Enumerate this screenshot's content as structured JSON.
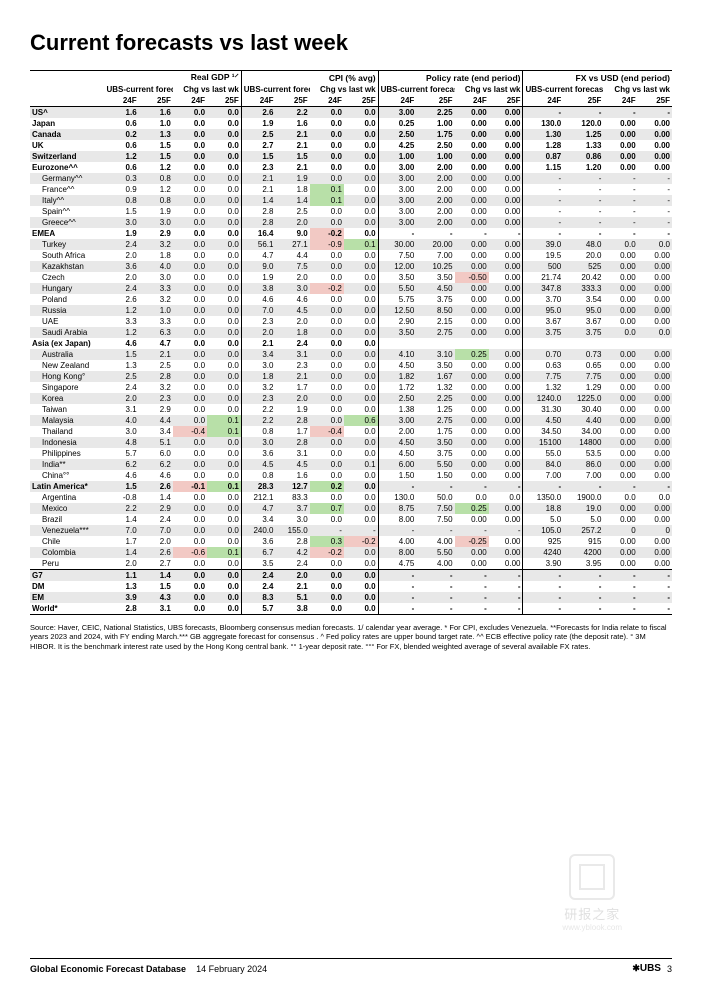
{
  "title": "Current forecasts vs last week",
  "groups": [
    {
      "label": "Real GDP ¹⸍",
      "sub1": "UBS-current forecasts",
      "sub2": "Chg vs last wk"
    },
    {
      "label": "CPI (% avg)",
      "sub1": "UBS-current forecasts",
      "sub2": "Chg vs last wk"
    },
    {
      "label": "Policy rate (end period)",
      "sub1": "UBS-current forecasts",
      "sub2": "Chg vs last wk"
    },
    {
      "label": "FX vs USD (end period)",
      "sub1": "UBS-current forecasts",
      "sub2": "Chg vs last wk"
    }
  ],
  "year_headers": [
    "24F",
    "25F",
    "24F",
    "25F",
    "24F",
    "25F",
    "24F",
    "25F",
    "24F",
    "25F",
    "24F",
    "25F",
    "24F",
    "25F",
    "24F",
    "25F"
  ],
  "rows": [
    {
      "name": "US^",
      "bold": true,
      "shade": true,
      "v": [
        "1.6",
        "1.6",
        "0.0",
        "0.0",
        "2.6",
        "2.2",
        "0.0",
        "0.0",
        "3.00",
        "2.25",
        "0.00",
        "0.00",
        "-",
        "-",
        "-",
        "-"
      ]
    },
    {
      "name": "Japan",
      "bold": true,
      "v": [
        "0.6",
        "1.0",
        "0.0",
        "0.0",
        "1.9",
        "1.6",
        "0.0",
        "0.0",
        "0.25",
        "1.00",
        "0.00",
        "0.00",
        "130.0",
        "120.0",
        "0.00",
        "0.00"
      ]
    },
    {
      "name": "Canada",
      "bold": true,
      "shade": true,
      "v": [
        "0.2",
        "1.3",
        "0.0",
        "0.0",
        "2.5",
        "2.1",
        "0.0",
        "0.0",
        "2.50",
        "1.75",
        "0.00",
        "0.00",
        "1.30",
        "1.25",
        "0.00",
        "0.00"
      ]
    },
    {
      "name": "UK",
      "bold": true,
      "v": [
        "0.6",
        "1.5",
        "0.0",
        "0.0",
        "2.7",
        "2.1",
        "0.0",
        "0.0",
        "4.25",
        "2.50",
        "0.00",
        "0.00",
        "1.28",
        "1.33",
        "0.00",
        "0.00"
      ]
    },
    {
      "name": "Switzerland",
      "bold": true,
      "shade": true,
      "v": [
        "1.2",
        "1.5",
        "0.0",
        "0.0",
        "1.5",
        "1.5",
        "0.0",
        "0.0",
        "1.00",
        "1.00",
        "0.00",
        "0.00",
        "0.87",
        "0.86",
        "0.00",
        "0.00"
      ]
    },
    {
      "name": "Eurozone^^",
      "bold": true,
      "v": [
        "0.6",
        "1.2",
        "0.0",
        "0.0",
        "2.3",
        "2.1",
        "0.0",
        "0.0",
        "3.00",
        "2.00",
        "0.00",
        "0.00",
        "1.15",
        "1.20",
        "0.00",
        "0.00"
      ]
    },
    {
      "name": "Germany^^",
      "indent": true,
      "shade": true,
      "v": [
        "0.3",
        "0.8",
        "0.0",
        "0.0",
        "2.1",
        "1.9",
        "0.0",
        "0.0",
        "3.00",
        "2.00",
        "0.00",
        "0.00",
        "-",
        "-",
        "-",
        "-"
      ]
    },
    {
      "name": "France^^",
      "indent": true,
      "v": [
        "0.9",
        "1.2",
        "0.0",
        "0.0",
        "2.1",
        "1.8",
        "0.1",
        "0.0",
        "3.00",
        "2.00",
        "0.00",
        "0.00",
        "-",
        "-",
        "-",
        "-"
      ],
      "hl": {
        "6": "g"
      }
    },
    {
      "name": "Italy^^",
      "indent": true,
      "shade": true,
      "v": [
        "0.8",
        "0.8",
        "0.0",
        "0.0",
        "1.4",
        "1.4",
        "0.1",
        "0.0",
        "3.00",
        "2.00",
        "0.00",
        "0.00",
        "-",
        "-",
        "-",
        "-"
      ],
      "hl": {
        "6": "g"
      }
    },
    {
      "name": "Spain^^",
      "indent": true,
      "v": [
        "1.5",
        "1.9",
        "0.0",
        "0.0",
        "2.8",
        "2.5",
        "0.0",
        "0.0",
        "3.00",
        "2.00",
        "0.00",
        "0.00",
        "-",
        "-",
        "-",
        "-"
      ]
    },
    {
      "name": "Greece^^",
      "indent": true,
      "shade": true,
      "v": [
        "3.0",
        "3.0",
        "0.0",
        "0.0",
        "2.8",
        "2.0",
        "0.0",
        "0.0",
        "3.00",
        "2.00",
        "0.00",
        "0.00",
        "-",
        "-",
        "-",
        "-"
      ]
    },
    {
      "name": "EMEA",
      "bold": true,
      "v": [
        "1.9",
        "2.9",
        "0.0",
        "0.0",
        "16.4",
        "9.0",
        "-0.2",
        "0.0",
        "-",
        "-",
        "-",
        "-",
        "-",
        "-",
        "-",
        "-"
      ],
      "hl": {
        "6": "r"
      }
    },
    {
      "name": "Turkey",
      "indent": true,
      "shade": true,
      "v": [
        "2.4",
        "3.2",
        "0.0",
        "0.0",
        "56.1",
        "27.1",
        "-0.9",
        "0.1",
        "30.00",
        "20.00",
        "0.00",
        "0.00",
        "39.0",
        "48.0",
        "0.0",
        "0.0"
      ],
      "hl": {
        "6": "r",
        "7": "g"
      }
    },
    {
      "name": "South Africa",
      "indent": true,
      "v": [
        "2.0",
        "1.8",
        "0.0",
        "0.0",
        "4.7",
        "4.4",
        "0.0",
        "0.0",
        "7.50",
        "7.00",
        "0.00",
        "0.00",
        "19.5",
        "20.0",
        "0.00",
        "0.00"
      ]
    },
    {
      "name": "Kazakhstan",
      "indent": true,
      "shade": true,
      "v": [
        "3.6",
        "4.0",
        "0.0",
        "0.0",
        "9.0",
        "7.5",
        "0.0",
        "0.0",
        "12.00",
        "10.25",
        "0.00",
        "0.00",
        "500",
        "525",
        "0.00",
        "0.00"
      ]
    },
    {
      "name": "Czech",
      "indent": true,
      "v": [
        "2.0",
        "3.0",
        "0.0",
        "0.0",
        "1.9",
        "2.0",
        "0.0",
        "0.0",
        "3.50",
        "3.50",
        "-0.50",
        "0.00",
        "21.74",
        "20.42",
        "0.00",
        "0.00"
      ],
      "hl": {
        "10": "r"
      }
    },
    {
      "name": "Hungary",
      "indent": true,
      "shade": true,
      "v": [
        "2.4",
        "3.3",
        "0.0",
        "0.0",
        "3.8",
        "3.0",
        "-0.2",
        "0.0",
        "5.50",
        "4.50",
        "0.00",
        "0.00",
        "347.8",
        "333.3",
        "0.00",
        "0.00"
      ],
      "hl": {
        "6": "r"
      }
    },
    {
      "name": "Poland",
      "indent": true,
      "v": [
        "2.6",
        "3.2",
        "0.0",
        "0.0",
        "4.6",
        "4.6",
        "0.0",
        "0.0",
        "5.75",
        "3.75",
        "0.00",
        "0.00",
        "3.70",
        "3.54",
        "0.00",
        "0.00"
      ]
    },
    {
      "name": "Russia",
      "indent": true,
      "shade": true,
      "v": [
        "1.2",
        "1.0",
        "0.0",
        "0.0",
        "7.0",
        "4.5",
        "0.0",
        "0.0",
        "12.50",
        "8.50",
        "0.00",
        "0.00",
        "95.0",
        "95.0",
        "0.00",
        "0.00"
      ]
    },
    {
      "name": "UAE",
      "indent": true,
      "v": [
        "3.3",
        "3.3",
        "0.0",
        "0.0",
        "2.3",
        "2.0",
        "0.0",
        "0.0",
        "2.90",
        "2.15",
        "0.00",
        "0.00",
        "3.67",
        "3.67",
        "0.00",
        "0.00"
      ]
    },
    {
      "name": "Saudi Arabia",
      "indent": true,
      "shade": true,
      "v": [
        "1.2",
        "6.3",
        "0.0",
        "0.0",
        "2.0",
        "1.8",
        "0.0",
        "0.0",
        "3.50",
        "2.75",
        "0.00",
        "0.00",
        "3.75",
        "3.75",
        "0.0",
        "0.0"
      ]
    },
    {
      "name": "Asia (ex Japan)",
      "bold": true,
      "v": [
        "4.6",
        "4.7",
        "0.0",
        "0.0",
        "2.1",
        "2.4",
        "0.0",
        "0.0",
        "",
        "",
        "",
        "",
        "",
        "",
        "",
        ""
      ]
    },
    {
      "name": "Australia",
      "indent": true,
      "shade": true,
      "v": [
        "1.5",
        "2.1",
        "0.0",
        "0.0",
        "3.4",
        "3.1",
        "0.0",
        "0.0",
        "4.10",
        "3.10",
        "0.25",
        "0.00",
        "0.70",
        "0.73",
        "0.00",
        "0.00"
      ],
      "hl": {
        "10": "g"
      }
    },
    {
      "name": "New Zealand",
      "indent": true,
      "v": [
        "1.3",
        "2.5",
        "0.0",
        "0.0",
        "3.0",
        "2.3",
        "0.0",
        "0.0",
        "4.50",
        "3.50",
        "0.00",
        "0.00",
        "0.63",
        "0.65",
        "0.00",
        "0.00"
      ]
    },
    {
      "name": "Hong Kong°",
      "indent": true,
      "shade": true,
      "v": [
        "2.5",
        "2.8",
        "0.0",
        "0.0",
        "1.8",
        "2.1",
        "0.0",
        "0.0",
        "1.82",
        "1.67",
        "0.00",
        "0.00",
        "7.75",
        "7.75",
        "0.00",
        "0.00"
      ]
    },
    {
      "name": "Singapore",
      "indent": true,
      "v": [
        "2.4",
        "3.2",
        "0.0",
        "0.0",
        "3.2",
        "1.7",
        "0.0",
        "0.0",
        "1.72",
        "1.32",
        "0.00",
        "0.00",
        "1.32",
        "1.29",
        "0.00",
        "0.00"
      ]
    },
    {
      "name": "Korea",
      "indent": true,
      "shade": true,
      "v": [
        "2.0",
        "2.3",
        "0.0",
        "0.0",
        "2.3",
        "2.0",
        "0.0",
        "0.0",
        "2.50",
        "2.25",
        "0.00",
        "0.00",
        "1240.0",
        "1225.0",
        "0.00",
        "0.00"
      ]
    },
    {
      "name": "Taiwan",
      "indent": true,
      "v": [
        "3.1",
        "2.9",
        "0.0",
        "0.0",
        "2.2",
        "1.9",
        "0.0",
        "0.0",
        "1.38",
        "1.25",
        "0.00",
        "0.00",
        "31.30",
        "30.40",
        "0.00",
        "0.00"
      ]
    },
    {
      "name": "Malaysia",
      "indent": true,
      "shade": true,
      "v": [
        "4.0",
        "4.4",
        "0.0",
        "0.1",
        "2.2",
        "2.8",
        "0.0",
        "0.6",
        "3.00",
        "2.75",
        "0.00",
        "0.00",
        "4.50",
        "4.40",
        "0.00",
        "0.00"
      ],
      "hl": {
        "3": "g",
        "7": "g"
      }
    },
    {
      "name": "Thailand",
      "indent": true,
      "v": [
        "3.0",
        "3.4",
        "-0.4",
        "0.1",
        "0.8",
        "1.7",
        "-0.4",
        "0.0",
        "2.00",
        "1.75",
        "0.00",
        "0.00",
        "34.50",
        "34.00",
        "0.00",
        "0.00"
      ],
      "hl": {
        "2": "r",
        "3": "g",
        "6": "r"
      }
    },
    {
      "name": "Indonesia",
      "indent": true,
      "shade": true,
      "v": [
        "4.8",
        "5.1",
        "0.0",
        "0.0",
        "3.0",
        "2.8",
        "0.0",
        "0.0",
        "4.50",
        "3.50",
        "0.00",
        "0.00",
        "15100",
        "14800",
        "0.00",
        "0.00"
      ]
    },
    {
      "name": "Philippines",
      "indent": true,
      "v": [
        "5.7",
        "6.0",
        "0.0",
        "0.0",
        "3.6",
        "3.1",
        "0.0",
        "0.0",
        "4.50",
        "3.75",
        "0.00",
        "0.00",
        "55.0",
        "53.5",
        "0.00",
        "0.00"
      ]
    },
    {
      "name": "India**",
      "indent": true,
      "shade": true,
      "v": [
        "6.2",
        "6.2",
        "0.0",
        "0.0",
        "4.5",
        "4.5",
        "0.0",
        "0.1",
        "6.00",
        "5.50",
        "0.00",
        "0.00",
        "84.0",
        "86.0",
        "0.00",
        "0.00"
      ]
    },
    {
      "name": "China°°",
      "indent": true,
      "v": [
        "4.6",
        "4.6",
        "0.0",
        "0.0",
        "0.8",
        "1.6",
        "0.0",
        "0.0",
        "1.50",
        "1.50",
        "0.00",
        "0.00",
        "7.00",
        "7.00",
        "0.00",
        "0.00"
      ]
    },
    {
      "name": "Latin America*",
      "bold": true,
      "shade": true,
      "v": [
        "1.5",
        "2.6",
        "-0.1",
        "0.1",
        "28.3",
        "12.7",
        "0.2",
        "0.0",
        "-",
        "-",
        "-",
        "-",
        "-",
        "-",
        "-",
        "-"
      ],
      "hl": {
        "2": "r",
        "3": "g",
        "6": "g"
      }
    },
    {
      "name": "Argentina",
      "indent": true,
      "v": [
        "-0.8",
        "1.4",
        "0.0",
        "0.0",
        "212.1",
        "83.3",
        "0.0",
        "0.0",
        "130.0",
        "50.0",
        "0.0",
        "0.0",
        "1350.0",
        "1900.0",
        "0.0",
        "0.0"
      ]
    },
    {
      "name": "Mexico",
      "indent": true,
      "shade": true,
      "v": [
        "2.2",
        "2.9",
        "0.0",
        "0.0",
        "4.7",
        "3.7",
        "0.7",
        "0.0",
        "8.75",
        "7.50",
        "0.25",
        "0.00",
        "18.8",
        "19.0",
        "0.00",
        "0.00"
      ],
      "hl": {
        "6": "g",
        "10": "g"
      }
    },
    {
      "name": "Brazil",
      "indent": true,
      "v": [
        "1.4",
        "2.4",
        "0.0",
        "0.0",
        "3.4",
        "3.0",
        "0.0",
        "0.0",
        "8.00",
        "7.50",
        "0.00",
        "0.00",
        "5.0",
        "5.0",
        "0.00",
        "0.00"
      ]
    },
    {
      "name": "Venezuela***",
      "indent": true,
      "shade": true,
      "v": [
        "7.0",
        "7.0",
        "0.0",
        "0.0",
        "240.0",
        "155.0",
        "-",
        "-",
        "-",
        "-",
        "-",
        "-",
        "105.0",
        "257.2",
        "0",
        "0"
      ]
    },
    {
      "name": "Chile",
      "indent": true,
      "v": [
        "1.7",
        "2.0",
        "0.0",
        "0.0",
        "3.6",
        "2.8",
        "0.3",
        "-0.2",
        "4.00",
        "4.00",
        "-0.25",
        "0.00",
        "925",
        "915",
        "0.00",
        "0.00"
      ],
      "hl": {
        "6": "g",
        "7": "r",
        "10": "r"
      }
    },
    {
      "name": "Colombia",
      "indent": true,
      "shade": true,
      "v": [
        "1.4",
        "2.6",
        "-0.6",
        "0.1",
        "6.7",
        "4.2",
        "-0.2",
        "0.0",
        "8.00",
        "5.50",
        "0.00",
        "0.00",
        "4240",
        "4200",
        "0.00",
        "0.00"
      ],
      "hl": {
        "2": "r",
        "3": "g",
        "6": "r"
      }
    },
    {
      "name": "Peru",
      "indent": true,
      "v": [
        "2.0",
        "2.7",
        "0.0",
        "0.0",
        "3.5",
        "2.4",
        "0.0",
        "0.0",
        "4.75",
        "4.00",
        "0.00",
        "0.00",
        "3.90",
        "3.95",
        "0.00",
        "0.00"
      ]
    },
    {
      "name": "G7",
      "bold": true,
      "shade": true,
      "top": true,
      "v": [
        "1.1",
        "1.4",
        "0.0",
        "0.0",
        "2.4",
        "2.0",
        "0.0",
        "0.0",
        "-",
        "-",
        "-",
        "-",
        "-",
        "-",
        "-",
        "-"
      ]
    },
    {
      "name": "DM",
      "bold": true,
      "v": [
        "1.3",
        "1.5",
        "0.0",
        "0.0",
        "2.4",
        "2.1",
        "0.0",
        "0.0",
        "-",
        "-",
        "-",
        "-",
        "-",
        "-",
        "-",
        "-"
      ]
    },
    {
      "name": "EM",
      "bold": true,
      "shade": true,
      "v": [
        "3.9",
        "4.3",
        "0.0",
        "0.0",
        "8.3",
        "5.1",
        "0.0",
        "0.0",
        "-",
        "-",
        "-",
        "-",
        "-",
        "-",
        "-",
        "-"
      ]
    },
    {
      "name": "World*",
      "bold": true,
      "bottom": true,
      "v": [
        "2.8",
        "3.1",
        "0.0",
        "0.0",
        "5.7",
        "3.8",
        "0.0",
        "0.0",
        "-",
        "-",
        "-",
        "-",
        "-",
        "-",
        "-",
        "-"
      ]
    }
  ],
  "colwidths": {
    "name": 70,
    "data": 35
  },
  "colors": {
    "shade": "#e8e8e8",
    "green": "#b8e0a8",
    "red": "#f2c9c4"
  },
  "source_note": "Source: Haver, CEIC, National Statistics, UBS forecasts, Bloomberg consensus median forecasts. 1/ calendar year average. * For CPI, excludes Venezuela. **Forecasts for India relate to fiscal years 2023 and 2024, with FY ending March.*** GB aggregate forecast for consensus . ^ Fed policy rates are upper bound target rate. ^^ ECB effective policy rate (the deposit rate). ° 3M HIBOR. It is the benchmark interest rate used by the Hong Kong central bank. °° 1-year deposit rate. °°° For FX, blended weighted average of several available FX rates.",
  "footer": {
    "database": "Global Economic Forecast Database",
    "date": "14 February 2024",
    "brand": "UBS",
    "page": "3"
  },
  "watermark": {
    "text": "研报之家",
    "sub": "www.yblook.com"
  }
}
